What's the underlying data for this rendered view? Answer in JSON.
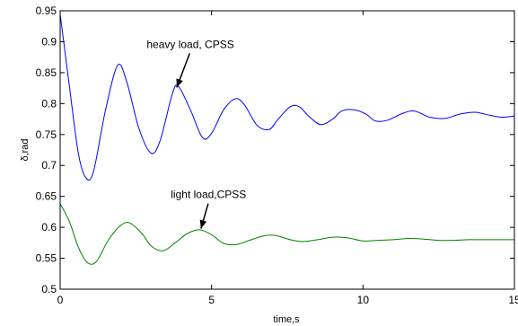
{
  "chart_data": {
    "type": "line",
    "xlabel": "time,s",
    "ylabel": "δ,rad",
    "xlim": [
      0,
      15
    ],
    "ylim": [
      0.5,
      0.95
    ],
    "xticks": [
      0,
      5,
      10,
      15
    ],
    "xtick_labels": [
      "0",
      "5",
      "10",
      "15"
    ],
    "yticks": [
      0.5,
      0.55,
      0.6,
      0.65,
      0.7,
      0.75,
      0.8,
      0.85,
      0.9,
      0.95
    ],
    "ytick_labels": [
      "0.5",
      "0.55",
      "0.6",
      "0.65",
      "0.7",
      "0.75",
      "0.8",
      "0.85",
      "0.9",
      "0.95"
    ],
    "grid": false,
    "series": [
      {
        "color": "#0000ff",
        "x": [
          0,
          0.3,
          0.6,
          0.85,
          1.1,
          1.5,
          1.9,
          2.2,
          2.6,
          3.0,
          3.3,
          3.7,
          3.9,
          4.3,
          4.7,
          5.0,
          5.4,
          5.8,
          6.1,
          6.5,
          6.9,
          7.2,
          7.6,
          7.9,
          8.2,
          8.6,
          9.0,
          9.3,
          9.7,
          10.1,
          10.4,
          10.8,
          11.3,
          11.7,
          12.2,
          12.7,
          13.2,
          13.7,
          14.2,
          14.6,
          15.0
        ],
        "values": [
          0.945,
          0.83,
          0.72,
          0.68,
          0.69,
          0.79,
          0.862,
          0.835,
          0.76,
          0.72,
          0.74,
          0.815,
          0.828,
          0.79,
          0.745,
          0.752,
          0.79,
          0.808,
          0.797,
          0.765,
          0.758,
          0.775,
          0.795,
          0.795,
          0.78,
          0.766,
          0.775,
          0.788,
          0.79,
          0.783,
          0.772,
          0.773,
          0.784,
          0.788,
          0.778,
          0.776,
          0.783,
          0.786,
          0.781,
          0.778,
          0.78
        ]
      },
      {
        "color": "#008000",
        "x": [
          0,
          0.3,
          0.6,
          0.9,
          1.2,
          1.6,
          2.0,
          2.3,
          2.7,
          3.0,
          3.4,
          3.8,
          4.2,
          4.6,
          5.0,
          5.4,
          5.8,
          6.2,
          6.7,
          7.1,
          7.6,
          8.0,
          8.5,
          9.0,
          9.5,
          10.0,
          10.5,
          11.0,
          11.5,
          12.0,
          12.5,
          13.0,
          13.5,
          14.0,
          14.5,
          15.0
        ],
        "values": [
          0.638,
          0.61,
          0.568,
          0.543,
          0.545,
          0.58,
          0.603,
          0.607,
          0.59,
          0.57,
          0.562,
          0.575,
          0.59,
          0.596,
          0.588,
          0.574,
          0.572,
          0.578,
          0.586,
          0.587,
          0.58,
          0.577,
          0.58,
          0.584,
          0.583,
          0.578,
          0.579,
          0.58,
          0.582,
          0.581,
          0.579,
          0.579,
          0.58,
          0.58,
          0.58,
          0.58
        ]
      }
    ],
    "annotations": [
      {
        "text": "heavy load, CPSS",
        "x_data": 4.3,
        "y_data": 0.89,
        "arrow_to": [
          3.85,
          0.826
        ]
      },
      {
        "text": "light load,CPSS",
        "x_data": 4.9,
        "y_data": 0.647,
        "arrow_to": [
          4.65,
          0.598
        ]
      }
    ]
  }
}
